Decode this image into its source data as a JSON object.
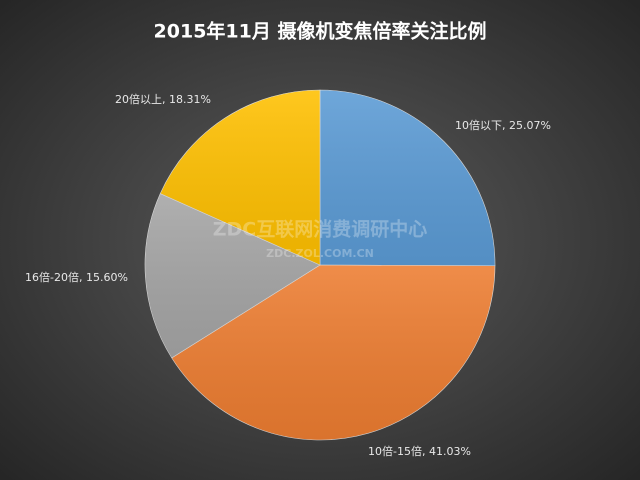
{
  "chart_data": {
    "type": "pie",
    "title": "2015年11月  摄像机变焦倍率关注比例",
    "categories": [
      "10倍以下",
      "10倍-15倍",
      "16倍-20倍",
      "20倍以上"
    ],
    "values": [
      25.07,
      41.03,
      15.6,
      18.31
    ],
    "value_labels": [
      "10倍以下, 25.07%",
      "10倍-15倍, 41.03%",
      "16倍-20倍, 15.60%",
      "20倍以上, 18.31%"
    ],
    "colors": [
      "#5b9bd5",
      "#ed7d31",
      "#a5a5a5",
      "#ffc000"
    ],
    "annotations": [
      "ZDC互联网消费调研中心",
      "ZDC.ZOL.COM.CN"
    ]
  }
}
